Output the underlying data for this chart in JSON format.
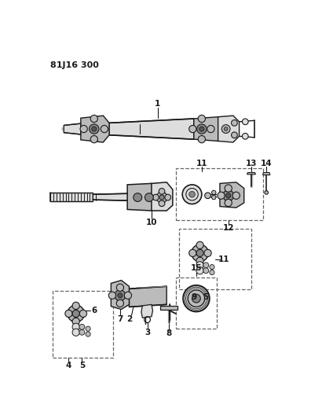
{
  "title": "81J16 300",
  "bg": "#ffffff",
  "lc": "#1a1a1a",
  "gray1": "#888888",
  "gray2": "#bbbbbb",
  "gray3": "#dddddd",
  "dash_color": "#666666",
  "figsize": [
    3.96,
    5.33
  ],
  "dpi": 100
}
